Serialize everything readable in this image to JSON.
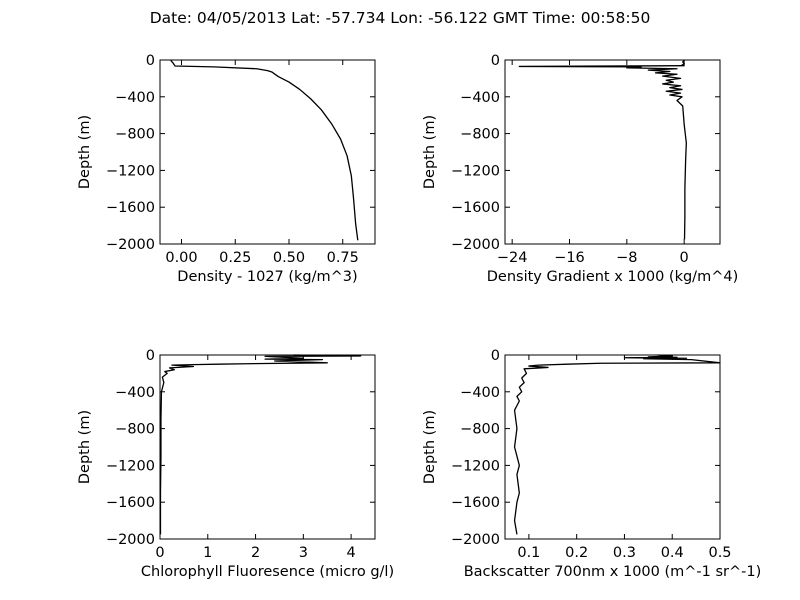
{
  "title": "Date: 04/05/2013  Lat:  -57.734 Lon:  -56.122  GMT Time: 00:58:50",
  "chart_data": [
    {
      "type": "line",
      "xlabel": "Density - 1027 (kg/m^3)",
      "ylabel": "Depth (m)",
      "xlim": [
        -0.1,
        0.9
      ],
      "ylim": [
        -2000,
        0
      ],
      "xticks": [
        0,
        0.25,
        0.5,
        0.75
      ],
      "xtick_labels": [
        "0.00",
        "0.25",
        "0.50",
        "0.75"
      ],
      "yticks": [
        0,
        -400,
        -800,
        -1200,
        -1600,
        -2000
      ],
      "ytick_labels": [
        "0",
        "−400",
        "−800",
        "−1200",
        "−1600",
        "−2000"
      ],
      "grid": false,
      "series": [
        {
          "x": [
            -0.05,
            -0.04,
            -0.03,
            0.15,
            0.35,
            0.4,
            0.42,
            0.45,
            0.5,
            0.55,
            0.6,
            0.65,
            0.7,
            0.74,
            0.77,
            0.79,
            0.8,
            0.81,
            0.82
          ],
          "y": [
            -5,
            -30,
            -65,
            -75,
            -95,
            -115,
            -130,
            -180,
            -240,
            -320,
            -420,
            -540,
            -700,
            -860,
            -1040,
            -1260,
            -1500,
            -1780,
            -1960
          ]
        }
      ]
    },
    {
      "type": "line",
      "xlabel": "Density Gradient x 1000 (kg/m^4)",
      "ylabel": "Depth (m)",
      "xlim": [
        -25,
        5
      ],
      "ylim": [
        -2000,
        0
      ],
      "xticks": [
        -24,
        -16,
        -8,
        0
      ],
      "xtick_labels": [
        "−24",
        "−16",
        "−8",
        "0"
      ],
      "yticks": [
        0,
        -400,
        -800,
        -1200,
        -1600,
        -2000
      ],
      "ytick_labels": [
        "0",
        "−400",
        "−800",
        "−1200",
        "−1600",
        "−2000"
      ],
      "grid": false,
      "series": [
        {
          "x": [
            0,
            -0.2,
            0,
            -0.3,
            0,
            -23,
            -6,
            -8,
            -1,
            -5,
            -2,
            -4,
            -1,
            -3,
            -0.5,
            -2.5,
            -1.5,
            -3,
            -0.5,
            -2,
            -0.3,
            -2.5,
            -0.5,
            -2,
            -0.3,
            -1,
            -0.2,
            0,
            0.3,
            0.2,
            0.1,
            0.1,
            0.05
          ],
          "y": [
            -5,
            -20,
            -40,
            -55,
            -62,
            -70,
            -75,
            -85,
            -95,
            -110,
            -125,
            -140,
            -155,
            -175,
            -200,
            -220,
            -240,
            -260,
            -280,
            -300,
            -320,
            -340,
            -360,
            -380,
            -400,
            -440,
            -500,
            -700,
            -900,
            -1100,
            -1400,
            -1700,
            -1950
          ]
        }
      ]
    },
    {
      "type": "line",
      "xlabel": "Chlorophyll Fluoresence (micro g/l)",
      "ylabel": "Depth (m)",
      "xlim": [
        0,
        4.5
      ],
      "ylim": [
        -2000,
        0
      ],
      "xticks": [
        0,
        1,
        2,
        3,
        4
      ],
      "xtick_labels": [
        "0",
        "1",
        "2",
        "3",
        "4"
      ],
      "yticks": [
        0,
        -400,
        -800,
        -1200,
        -1600,
        -2000
      ],
      "ytick_labels": [
        "0",
        "−400",
        "−800",
        "−1200",
        "−1600",
        "−2000"
      ],
      "grid": false,
      "series": [
        {
          "x": [
            2.8,
            4.2,
            2.2,
            3.0,
            2.2,
            3.4,
            2.4,
            3.5,
            1.8,
            1.2,
            0.7,
            0.25,
            0.7,
            0.2,
            0.3,
            0.1,
            0.15,
            0.05,
            0.08,
            0.03,
            0.02,
            0.02,
            0.01,
            0.01
          ],
          "y": [
            0,
            -10,
            -15,
            -35,
            -45,
            -50,
            -65,
            -85,
            -95,
            -100,
            -105,
            -110,
            -125,
            -140,
            -160,
            -180,
            -200,
            -240,
            -300,
            -400,
            -700,
            -1100,
            -1500,
            -1950
          ]
        }
      ]
    },
    {
      "type": "line",
      "xlabel": "Backscatter 700nm x 1000 (m^-1 sr^-1)",
      "ylabel": "Depth (m)",
      "xlim": [
        0.05,
        0.5
      ],
      "ylim": [
        -2000,
        0
      ],
      "xticks": [
        0.1,
        0.2,
        0.3,
        0.4,
        0.5
      ],
      "xtick_labels": [
        "0.1",
        "0.2",
        "0.3",
        "0.4",
        "0.5"
      ],
      "yticks": [
        0,
        -400,
        -800,
        -1200,
        -1600,
        -2000
      ],
      "ytick_labels": [
        "0",
        "−400",
        "−800",
        "−1200",
        "−1600",
        "−2000"
      ],
      "grid": false,
      "series": [
        {
          "x": [
            0.37,
            0.4,
            0.35,
            0.41,
            0.3,
            0.43,
            0.34,
            0.44,
            0.5,
            0.25,
            0.18,
            0.12,
            0.1,
            0.14,
            0.09,
            0.095,
            0.085,
            0.09,
            0.08,
            0.085,
            0.075,
            0.08,
            0.07,
            0.075,
            0.07,
            0.08,
            0.075,
            0.08,
            0.075,
            0.07,
            0.075
          ],
          "y": [
            0,
            -10,
            -20,
            -25,
            -30,
            -35,
            -40,
            -50,
            -85,
            -90,
            -100,
            -110,
            -120,
            -135,
            -150,
            -200,
            -250,
            -300,
            -350,
            -400,
            -450,
            -500,
            -600,
            -800,
            -1000,
            -1200,
            -1300,
            -1500,
            -1600,
            -1800,
            -1950
          ]
        }
      ]
    }
  ]
}
